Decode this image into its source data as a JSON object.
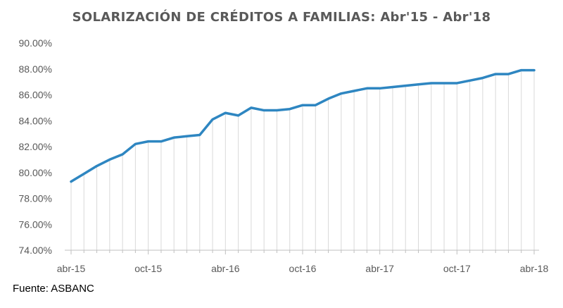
{
  "title": "SOLARIZACIÓN DE CRÉDITOS A FAMILIAS: Abr'15 - Abr'18",
  "source": "Fuente: ASBANC",
  "colors": {
    "line": "#2e86c1",
    "drop_lines": "#d9d9d9",
    "axis": "#bfbfbf",
    "text": "#595959"
  },
  "chart_data": {
    "type": "line",
    "title": "SOLARIZACIÓN DE CRÉDITOS A FAMILIAS: Abr'15 - Abr'18",
    "xlabel": "",
    "ylabel": "",
    "ylim": [
      74,
      90
    ],
    "y_ticks": [
      "74.00%",
      "76.00%",
      "78.00%",
      "80.00%",
      "82.00%",
      "84.00%",
      "86.00%",
      "88.00%",
      "90.00%"
    ],
    "x_tick_labels": [
      "abr-15",
      "oct-15",
      "abr-16",
      "oct-16",
      "abr-17",
      "oct-17",
      "abr-18"
    ],
    "x_tick_every": 6,
    "grid": false,
    "drop_lines": true,
    "categories": [
      "abr-15",
      "may-15",
      "jun-15",
      "jul-15",
      "ago-15",
      "set-15",
      "oct-15",
      "nov-15",
      "dic-15",
      "ene-16",
      "feb-16",
      "mar-16",
      "abr-16",
      "may-16",
      "jun-16",
      "jul-16",
      "ago-16",
      "set-16",
      "oct-16",
      "nov-16",
      "dic-16",
      "ene-17",
      "feb-17",
      "mar-17",
      "abr-17",
      "may-17",
      "jun-17",
      "jul-17",
      "ago-17",
      "set-17",
      "oct-17",
      "nov-17",
      "dic-17",
      "ene-18",
      "feb-18",
      "mar-18",
      "abr-18"
    ],
    "series": [
      {
        "values": [
          79.3,
          79.9,
          80.5,
          81.0,
          81.4,
          82.2,
          82.4,
          82.4,
          82.7,
          82.8,
          82.9,
          84.1,
          84.6,
          84.4,
          85.0,
          84.8,
          84.8,
          84.9,
          85.2,
          85.2,
          85.7,
          86.1,
          86.3,
          86.5,
          86.5,
          86.6,
          86.7,
          86.8,
          86.9,
          86.9,
          86.9,
          87.1,
          87.3,
          87.6,
          87.6,
          87.9,
          87.9
        ]
      }
    ]
  }
}
